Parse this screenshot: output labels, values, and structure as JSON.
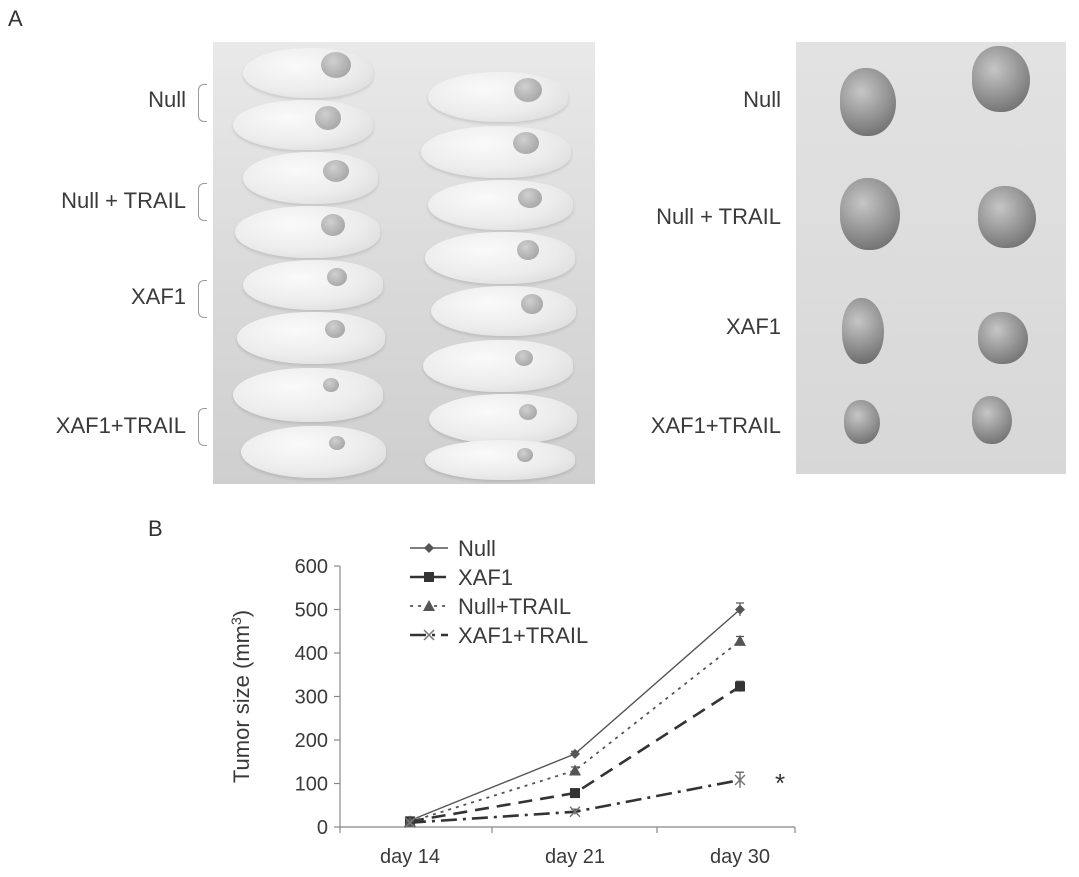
{
  "panels": {
    "a": "A",
    "b": "B"
  },
  "mice_labels": [
    "Null",
    "Null + TRAIL",
    "XAF1",
    "XAF1+TRAIL"
  ],
  "tumor_labels": [
    "Null",
    "Null + TRAIL",
    "XAF1",
    "XAF1+TRAIL"
  ],
  "chart_data": {
    "type": "line",
    "categories": [
      "day 14",
      "day 21",
      "day 30"
    ],
    "ylabel": "Tumor size (mm",
    "ylabel_sup": "3",
    "ylabel_end": ")",
    "ylim": [
      0,
      600
    ],
    "yticks": [
      0,
      100,
      200,
      300,
      400,
      500,
      600
    ],
    "legend_position": "top",
    "series": [
      {
        "name": "Null",
        "values": [
          15,
          168,
          500
        ],
        "errors": [
          3,
          6,
          15
        ],
        "color": "#555555",
        "dash": "",
        "marker": "diamond"
      },
      {
        "name": "XAF1",
        "values": [
          13,
          78,
          323
        ],
        "errors": [
          3,
          5,
          12
        ],
        "color": "#333333",
        "dash": "14,8",
        "marker": "square"
      },
      {
        "name": "Null+TRAIL",
        "values": [
          12,
          130,
          428
        ],
        "errors": [
          3,
          8,
          10
        ],
        "color": "#555555",
        "dash": "3,5",
        "marker": "triangle"
      },
      {
        "name": "XAF1+TRAIL",
        "values": [
          10,
          35,
          108
        ],
        "errors": [
          2,
          6,
          18
        ],
        "color": "#333333",
        "dash": "16,6,3,6",
        "marker": "x"
      }
    ],
    "annotation": "*"
  }
}
